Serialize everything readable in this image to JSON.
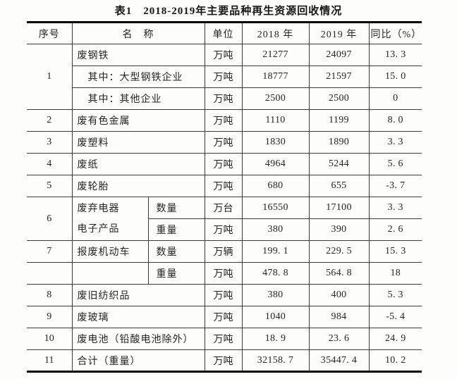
{
  "title": "表1　2018-2019年主要品种再生资源回收情况",
  "table": {
    "headers": {
      "index": "序号",
      "name": "名　称",
      "unit": "单位",
      "y2018": "2018 年",
      "y2019": "2019 年",
      "yoy": "同比（%）"
    },
    "rows": [
      {
        "no": "1",
        "name": "废钢铁",
        "unit": "万吨",
        "v2018": "21277",
        "v2019": "24097",
        "yoy": "13. 3"
      },
      {
        "name": "其中：大型钢铁企业",
        "unit": "万吨",
        "v2018": "18777",
        "v2019": "21597",
        "yoy": "15. 0"
      },
      {
        "name": "其中：其他企业",
        "unit": "万吨",
        "v2018": "2500",
        "v2019": "2500",
        "yoy": "0"
      },
      {
        "no": "2",
        "name": "废有色金属",
        "unit": "万吨",
        "v2018": "1110",
        "v2019": "1199",
        "yoy": "8. 0"
      },
      {
        "no": "3",
        "name": "废塑料",
        "unit": "万吨",
        "v2018": "1830",
        "v2019": "1890",
        "yoy": "3. 3"
      },
      {
        "no": "4",
        "name": "废纸",
        "unit": "万吨",
        "v2018": "4964",
        "v2019": "5244",
        "yoy": "5. 6"
      },
      {
        "no": "5",
        "name": "废轮胎",
        "unit": "万吨",
        "v2018": "680",
        "v2019": "655",
        "yoy": "-3. 7"
      },
      {
        "no": "6",
        "name": "废弃电器电子产品",
        "sub": "数量",
        "unit": "万台",
        "v2018": "16550",
        "v2019": "17100",
        "yoy": "3. 3"
      },
      {
        "sub": "重量",
        "unit": "万吨",
        "v2018": "380",
        "v2019": "390",
        "yoy": "2. 6"
      },
      {
        "no": "7",
        "name": "报废机动车",
        "sub": "数量",
        "unit": "万辆",
        "v2018": "199. 1",
        "v2019": "229. 5",
        "yoy": "15. 3"
      },
      {
        "no": "",
        "name": "",
        "sub": "重量",
        "unit": "万吨",
        "v2018": "478. 8",
        "v2019": "564. 8",
        "yoy": "18"
      },
      {
        "no": "8",
        "name": "废旧纺织品",
        "unit": "万吨",
        "v2018": "380",
        "v2019": "400",
        "yoy": "5. 3"
      },
      {
        "no": "9",
        "name": "废玻璃",
        "unit": "万吨",
        "v2018": "1040",
        "v2019": "984",
        "yoy": "-5. 4"
      },
      {
        "no": "10",
        "name": "废电池（铅酸电池除外）",
        "unit": "万吨",
        "v2018": "18. 9",
        "v2019": "23. 6",
        "yoy": "24. 9"
      },
      {
        "no": "11",
        "name": "合计（重量）",
        "unit": "万吨",
        "v2018": "32158. 7",
        "v2019": "35447. 4",
        "yoy": "10. 2"
      }
    ]
  }
}
